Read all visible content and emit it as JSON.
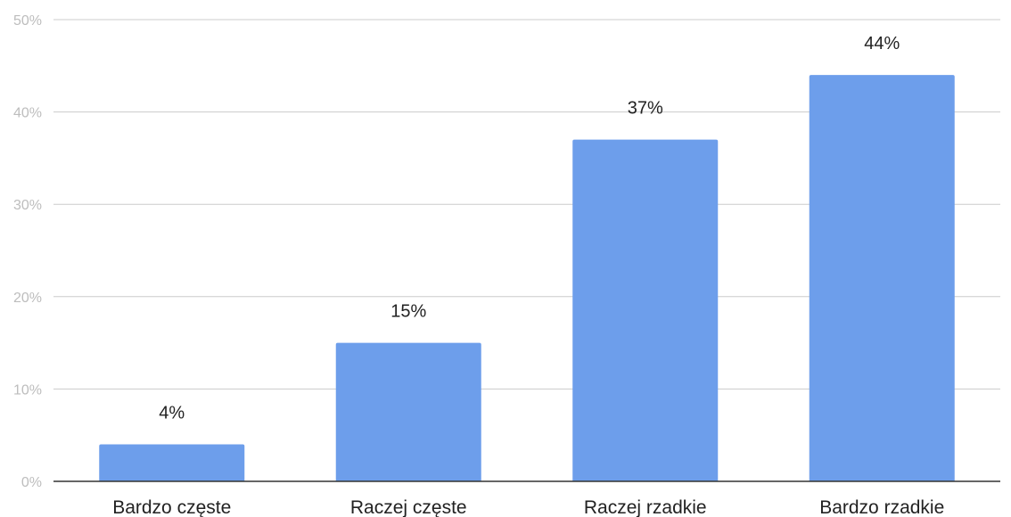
{
  "chart_data": {
    "type": "bar",
    "categories": [
      "Bardzo częste",
      "Raczej częste",
      "Raczej rzadkie",
      "Bardzo rzadkie"
    ],
    "values": [
      4,
      15,
      37,
      44
    ],
    "value_labels": [
      "4%",
      "15%",
      "37%",
      "44%"
    ],
    "ylim": [
      0,
      50
    ],
    "yticks": [
      0,
      10,
      20,
      30,
      40,
      50
    ],
    "ytick_labels": [
      "0%",
      "10%",
      "20%",
      "30%",
      "40%",
      "50%"
    ],
    "grid": true,
    "legend": "none",
    "colors": {
      "bar": "#6d9eeb",
      "grid": "#cccccc",
      "baseline": "#333333",
      "tick_text": "#bdbdbd",
      "label_text": "#222222"
    }
  }
}
